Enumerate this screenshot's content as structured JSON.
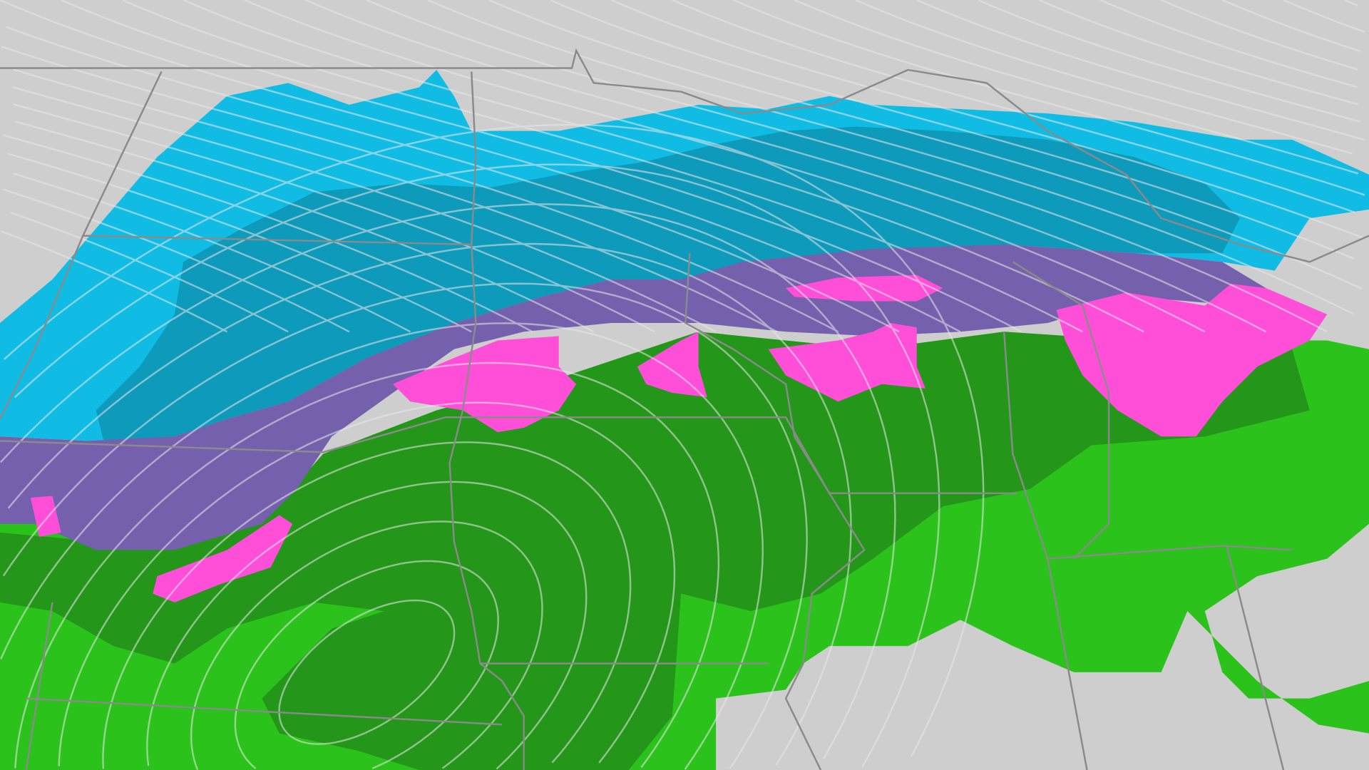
{
  "map": {
    "colors": {
      "background": "#cecece",
      "snow_light": "#10bce4",
      "snow_heavy": "#0e9aba",
      "mixed": "#7560ad",
      "ice": "#ff4fd8",
      "rain_heavy": "#24961a",
      "rain_light": "#2bc21b",
      "borders": "#8a8a8a",
      "isobars": "#e8e8e8"
    }
  }
}
